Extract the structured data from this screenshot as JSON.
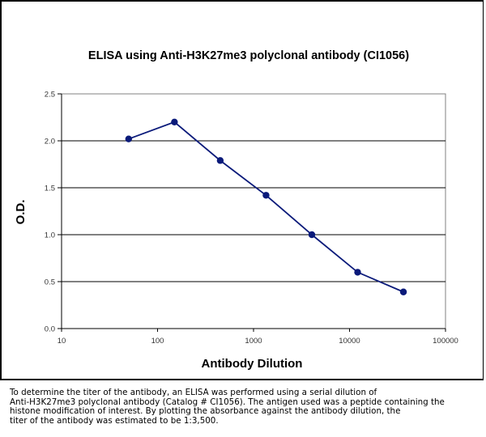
{
  "chart_data": {
    "type": "line",
    "title": "ELISA using Anti-H3K27me3 polyclonal antibody (CI1056)",
    "xlabel": "Antibody Dilution",
    "ylabel": "O.D.",
    "x_scale": "log",
    "xlim": [
      10,
      100000
    ],
    "ylim": [
      0,
      2.5
    ],
    "x_ticks": [
      10,
      100,
      1000,
      10000,
      100000
    ],
    "x_tick_labels": [
      "10",
      "100",
      "1000",
      "10000",
      "100000"
    ],
    "y_ticks": [
      0,
      0.5,
      1,
      1.5,
      2,
      2.5
    ],
    "y_tick_labels": [
      "0.0",
      "0.5",
      "1.0",
      "1.5",
      "2.0",
      "2.5"
    ],
    "grid": "horizontal",
    "legend": "none",
    "series": [
      {
        "name": "Anti-H3K27me3",
        "color": "#0a1a7a",
        "x": [
          50,
          150,
          450,
          1350,
          4050,
          12150,
          36450
        ],
        "y": [
          2.02,
          2.2,
          1.79,
          1.42,
          1.0,
          0.6,
          0.39
        ]
      }
    ]
  },
  "caption": "To determine the titer of the antibody, an ELISA was performed using a serial dilution of\nAnti-H3K27me3 polyclonal antibody (Catalog # CI1056). The antigen used was a peptide containing the\nhistone modification of interest. By plotting the absorbance against the antibody dilution, the\ntiter of the antibody was estimated to be 1:3,500."
}
